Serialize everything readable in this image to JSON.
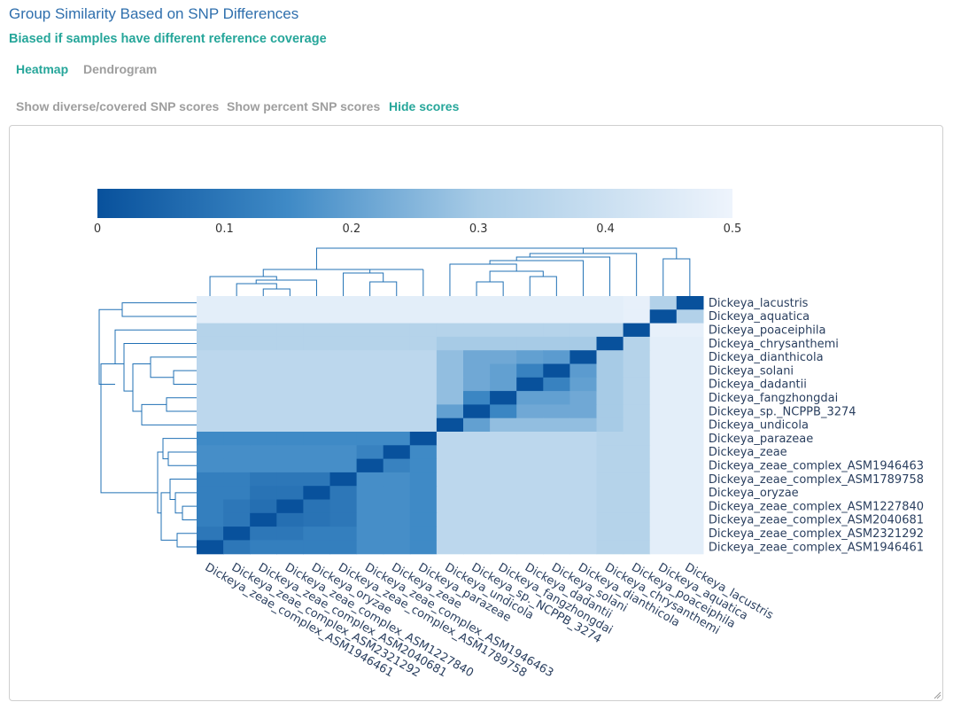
{
  "header": {
    "title": "Group Similarity Based on SNP Differences",
    "subtitle": "Biased if samples have different reference coverage"
  },
  "tabs": [
    {
      "label": "Heatmap",
      "active": true
    },
    {
      "label": "Dendrogram",
      "active": false
    }
  ],
  "score_options": [
    {
      "label": "Show diverse/covered SNP scores",
      "active": false
    },
    {
      "label": "Show percent SNP scores",
      "active": false
    },
    {
      "label": "Hide scores",
      "active": true
    }
  ],
  "colors": {
    "accent": "#26a69a",
    "title": "#2f6fad",
    "scale_low": "#08519c",
    "scale_high": "#eef4fc"
  },
  "chart_data": {
    "type": "heatmap",
    "colorbar": {
      "ticks": [
        "0",
        "0.1",
        "0.2",
        "0.3",
        "0.4",
        "0.5"
      ],
      "range": [
        0,
        0.5
      ]
    },
    "samples": [
      "Dickeya_lacustris",
      "Dickeya_aquatica",
      "Dickeya_poaceiphila",
      "Dickeya_chrysanthemi",
      "Dickeya_dianthicola",
      "Dickeya_solani",
      "Dickeya_dadantii",
      "Dickeya_fangzhongdai",
      "Dickeya_sp._NCPPB_3274",
      "Dickeya_undicola",
      "Dickeya_parazeae",
      "Dickeya_zeae",
      "Dickeya_zeae_complex_ASM1946463",
      "Dickeya_zeae_complex_ASM1789758",
      "Dickeya_oryzae",
      "Dickeya_zeae_complex_ASM1227840",
      "Dickeya_zeae_complex_ASM2040681",
      "Dickeya_zeae_complex_ASM2321292",
      "Dickeya_zeae_complex_ASM1946461"
    ],
    "grid": false,
    "colorbar_placement": "top"
  }
}
